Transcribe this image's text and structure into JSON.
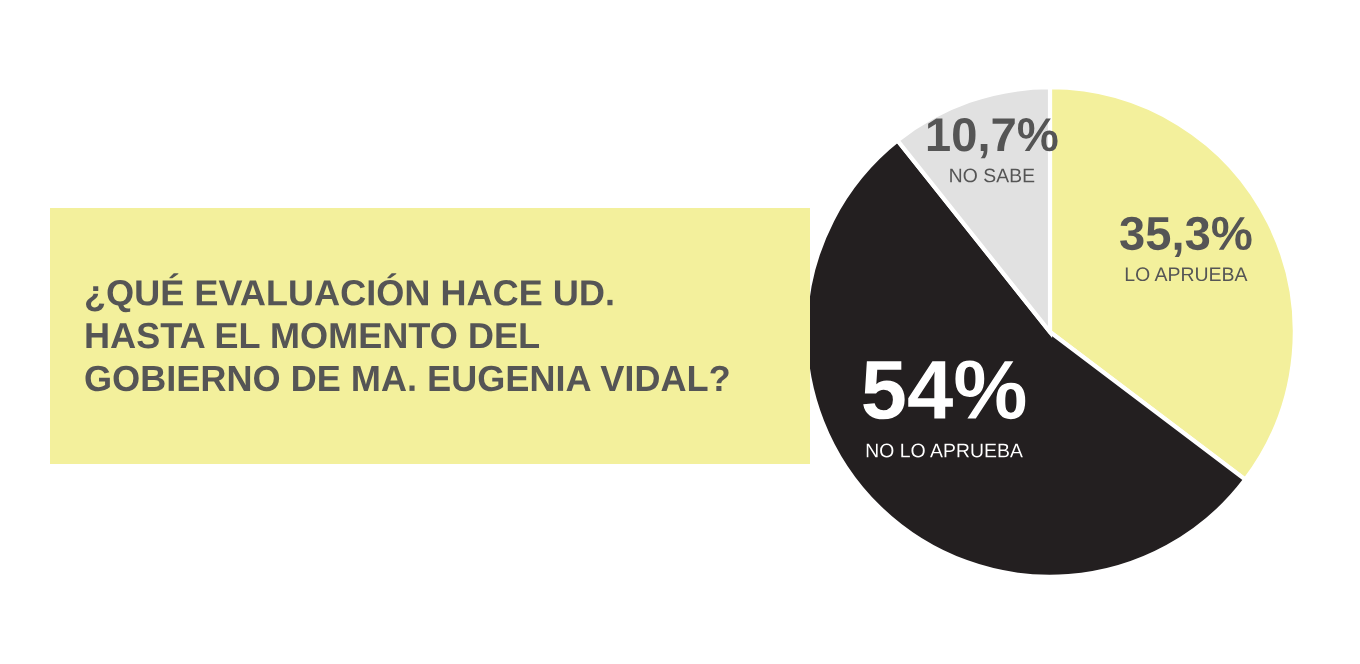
{
  "chart_data": {
    "type": "pie",
    "title": "¿QUÉ EVALUACIÓN HACE UD.\nHASTA EL MOMENTO DEL\nGOBIERNO DE MA. EUGENIA VIDAL?",
    "categories": [
      "LO APRUEBA",
      "NO LO APRUEBA",
      "NO SABE"
    ],
    "values": [
      35.3,
      54,
      10.7
    ],
    "colors": [
      "#f3f09c",
      "#231f20",
      "#e1e1e1"
    ],
    "value_labels": [
      "35,3%",
      "54%",
      "10,7%"
    ]
  }
}
